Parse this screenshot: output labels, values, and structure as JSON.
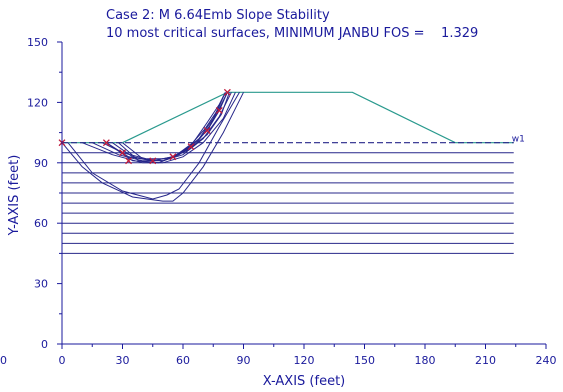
{
  "chart_data": {
    "type": "line",
    "title": "Case 2: M 6.64Emb Slope Stability",
    "subtitle": "10 most critical surfaces, MINIMUM JANBU FOS =    1.329",
    "xlabel": "X-AXIS (feet)",
    "ylabel": "Y-AXIS (feet)",
    "xlim": [
      0,
      240
    ],
    "ylim": [
      0,
      150
    ],
    "x_ticks": [
      0,
      30,
      60,
      90,
      120,
      150,
      180,
      210,
      240
    ],
    "y_ticks": [
      0,
      30,
      60,
      90,
      120,
      150
    ],
    "outside_zero_label": "0",
    "grid": false,
    "colors": {
      "axis": "#1a1a9c",
      "surface": "#27278a",
      "embankment": "#2a9a8e",
      "layer": "#27278a",
      "water": "#27278a",
      "marker": "#c0183a"
    },
    "series": [
      {
        "name": "",
        "role": "embankment",
        "x": [
          0,
          30,
          82,
          144,
          195,
          224
        ],
        "y": [
          100,
          100,
          125,
          125,
          100,
          100
        ]
      },
      {
        "name": "w1",
        "role": "water-table",
        "dashed": true,
        "x": [
          0,
          224
        ],
        "y": [
          100,
          100
        ]
      }
    ],
    "layers": [
      {
        "y": 95,
        "x_end": 224
      },
      {
        "y": 90,
        "x_end": 224
      },
      {
        "y": 85,
        "x_end": 224
      },
      {
        "y": 80,
        "x_end": 224
      },
      {
        "y": 75,
        "x_end": 224
      },
      {
        "y": 70,
        "x_end": 224
      },
      {
        "y": 65,
        "x_end": 224
      },
      {
        "y": 60,
        "x_end": 224
      },
      {
        "y": 55,
        "x_end": 224
      },
      {
        "y": 50,
        "x_end": 224
      },
      {
        "y": 45,
        "x_end": 224
      }
    ],
    "surfaces": [
      {
        "x": [
          0,
          10,
          20,
          35,
          50,
          55,
          60,
          70,
          80,
          90
        ],
        "y": [
          100,
          88,
          80,
          73,
          71,
          71,
          75,
          88,
          105,
          125
        ]
      },
      {
        "x": [
          3,
          15,
          30,
          45,
          52,
          58,
          68,
          78,
          88
        ],
        "y": [
          100,
          85,
          76,
          72,
          74,
          77,
          90,
          108,
          125
        ]
      },
      {
        "x": [
          10,
          25,
          40,
          50,
          60,
          70,
          80,
          86
        ],
        "y": [
          100,
          94,
          90,
          90,
          93,
          100,
          112,
          125
        ]
      },
      {
        "x": [
          15,
          28,
          40,
          50,
          60,
          70,
          78,
          84
        ],
        "y": [
          100,
          94,
          91,
          91,
          94,
          102,
          113,
          125
        ]
      },
      {
        "x": [
          20,
          30,
          42,
          52,
          62,
          72,
          79,
          83
        ],
        "y": [
          100,
          95,
          92,
          92,
          96,
          104,
          114,
          125
        ]
      },
      {
        "x": [
          22,
          33,
          45,
          55,
          64,
          72,
          78,
          82
        ],
        "y": [
          100,
          93,
          91,
          93,
          98,
          106,
          116,
          125
        ]
      },
      {
        "x": [
          25,
          35,
          45,
          55,
          63,
          71,
          77,
          81
        ],
        "y": [
          100,
          93,
          91,
          93,
          98,
          107,
          116,
          125
        ]
      },
      {
        "x": [
          30,
          40,
          50,
          58,
          66,
          73,
          78,
          82
        ],
        "y": [
          100,
          92,
          91,
          94,
          99,
          108,
          117,
          125
        ]
      },
      {
        "x": [
          22,
          35,
          48,
          58,
          68,
          75,
          80
        ],
        "y": [
          100,
          91,
          90,
          94,
          102,
          112,
          123
        ]
      },
      {
        "x": [
          28,
          38,
          48,
          57,
          65,
          72,
          78,
          81
        ],
        "y": [
          100,
          91,
          90,
          94,
          100,
          110,
          119,
          125
        ]
      }
    ],
    "markers": [
      {
        "x": 0,
        "y": 100
      },
      {
        "x": 22,
        "y": 100
      },
      {
        "x": 30,
        "y": 95
      },
      {
        "x": 33,
        "y": 91
      },
      {
        "x": 45,
        "y": 91
      },
      {
        "x": 55,
        "y": 93
      },
      {
        "x": 64,
        "y": 98
      },
      {
        "x": 72,
        "y": 106
      },
      {
        "x": 78,
        "y": 116
      },
      {
        "x": 82,
        "y": 125
      }
    ]
  }
}
